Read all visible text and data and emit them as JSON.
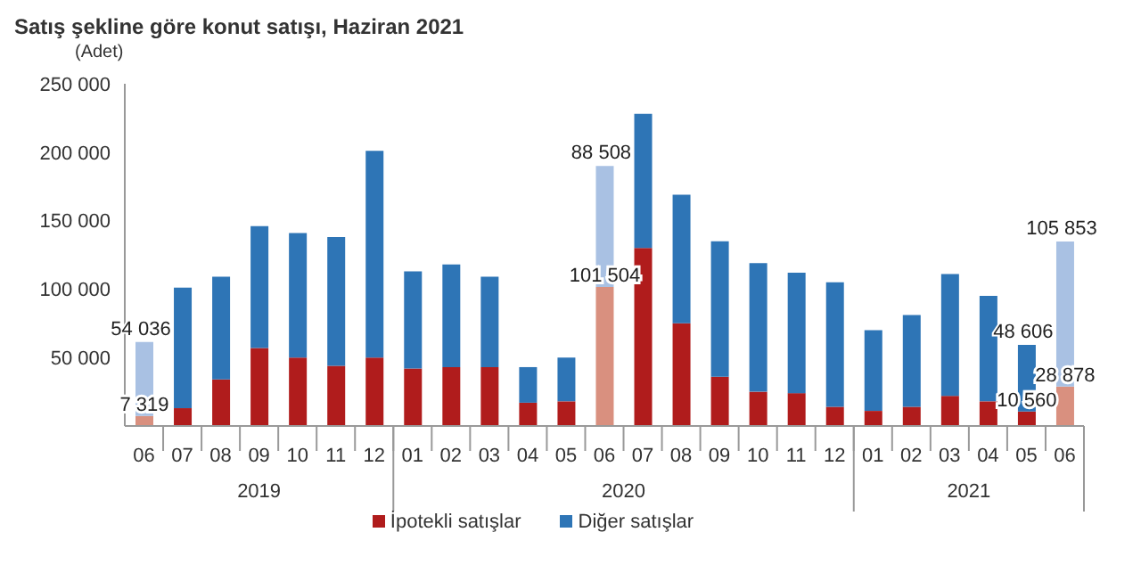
{
  "chart_data": {
    "type": "bar",
    "title": "Satış şekline göre konut satışı, Haziran 2021",
    "ylabel": "(Adet)",
    "stacked": true,
    "categories": [
      "06",
      "07",
      "08",
      "09",
      "10",
      "11",
      "12",
      "01",
      "02",
      "03",
      "04",
      "05",
      "06",
      "07",
      "08",
      "09",
      "10",
      "11",
      "12",
      "01",
      "02",
      "03",
      "04",
      "05",
      "06"
    ],
    "annotations": [
      "2019",
      "2020",
      "2021"
    ],
    "series": [
      {
        "name": "İpotekli satışlar",
        "color": "#b01c1c",
        "colors": [
          "#d9907f",
          "#b01c1c",
          "#b01c1c",
          "#b01c1c",
          "#b01c1c",
          "#b01c1c",
          "#b01c1c",
          "#b01c1c",
          "#b01c1c",
          "#b01c1c",
          "#b01c1c",
          "#b01c1c",
          "#d9907f",
          "#b01c1c",
          "#b01c1c",
          "#b01c1c",
          "#b01c1c",
          "#b01c1c",
          "#b01c1c",
          "#b01c1c",
          "#b01c1c",
          "#b01c1c",
          "#b01c1c",
          "#b01c1c",
          "#d9907f"
        ],
        "values": [
          7319,
          13000,
          34000,
          57000,
          50000,
          44000,
          50000,
          42000,
          43000,
          43000,
          17000,
          18000,
          101504,
          130000,
          75000,
          36000,
          25000,
          24000,
          14000,
          11000,
          14000,
          22000,
          18000,
          10560,
          28878
        ],
        "value_labels": [
          "7 319",
          null,
          null,
          null,
          null,
          null,
          null,
          null,
          null,
          null,
          null,
          null,
          "101 504",
          null,
          null,
          null,
          null,
          null,
          null,
          null,
          null,
          null,
          null,
          "10 560",
          "28 878"
        ]
      },
      {
        "name": "Diğer satışlar",
        "color": "#2e75b6",
        "colors": [
          "#a9c1e3",
          "#2e75b6",
          "#2e75b6",
          "#2e75b6",
          "#2e75b6",
          "#2e75b6",
          "#2e75b6",
          "#2e75b6",
          "#2e75b6",
          "#2e75b6",
          "#2e75b6",
          "#2e75b6",
          "#a9c1e3",
          "#2e75b6",
          "#2e75b6",
          "#2e75b6",
          "#2e75b6",
          "#2e75b6",
          "#2e75b6",
          "#2e75b6",
          "#2e75b6",
          "#2e75b6",
          "#2e75b6",
          "#2e75b6",
          "#a9c1e3"
        ],
        "values": [
          54036,
          88000,
          75000,
          89000,
          91000,
          94000,
          151000,
          71000,
          75000,
          66000,
          26000,
          32000,
          88508,
          98000,
          94000,
          99000,
          94000,
          88000,
          91000,
          59000,
          67000,
          89000,
          77000,
          48606,
          105853
        ],
        "value_labels": [
          "54 036",
          null,
          null,
          null,
          null,
          null,
          null,
          null,
          null,
          null,
          null,
          null,
          "88 508",
          null,
          null,
          null,
          null,
          null,
          null,
          null,
          null,
          null,
          null,
          "48 606",
          "105 853"
        ]
      }
    ],
    "ylim": [
      0,
      250000
    ],
    "yticks": [
      {
        "value": 0,
        "label": null
      },
      {
        "value": 50000,
        "label": "50 000"
      },
      {
        "value": 100000,
        "label": "100 000"
      },
      {
        "value": 150000,
        "label": "150 000"
      },
      {
        "value": 200000,
        "label": "200 000"
      },
      {
        "value": 250000,
        "label": "250 000"
      }
    ],
    "legend": "bottom"
  }
}
